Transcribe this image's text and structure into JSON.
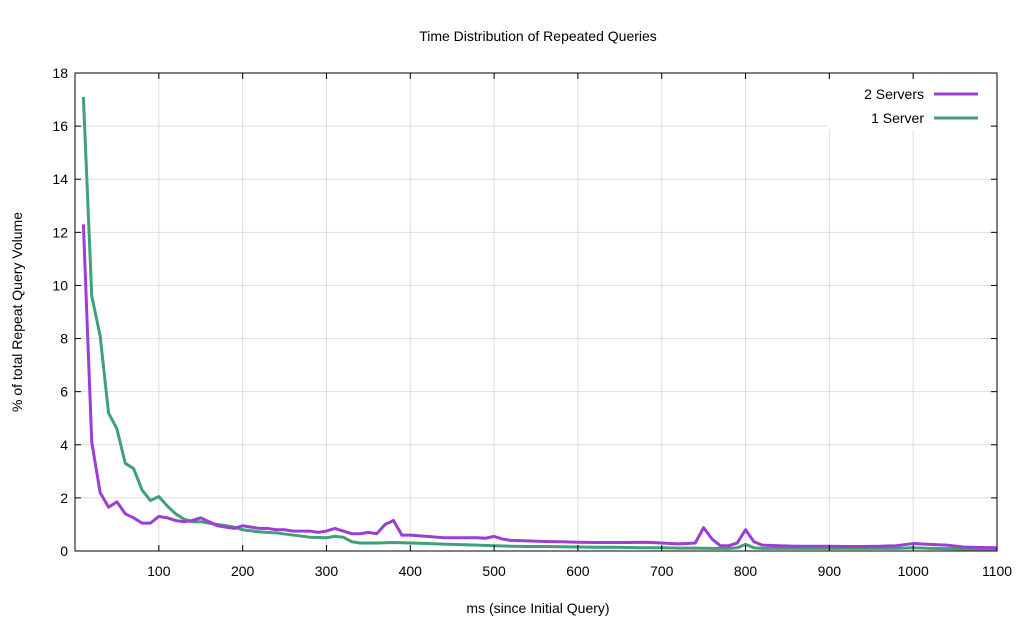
{
  "chart_data": {
    "type": "line",
    "title": "Time Distribution of Repeated Queries",
    "xlabel": "ms (since Initial Query)",
    "ylabel": "% of total Repeat Query Volume",
    "xlim": [
      0,
      1100
    ],
    "ylim": [
      0,
      18
    ],
    "x_ticks": [
      100,
      200,
      300,
      400,
      500,
      600,
      700,
      800,
      900,
      1000,
      1100
    ],
    "y_ticks": [
      0,
      2,
      4,
      6,
      8,
      10,
      12,
      14,
      16,
      18
    ],
    "grid": true,
    "legend_position": "top-right",
    "series": [
      {
        "name": "2  Servers",
        "color": "#9b3fd4",
        "points": [
          [
            10,
            12.3
          ],
          [
            20,
            4.1
          ],
          [
            30,
            2.2
          ],
          [
            40,
            1.65
          ],
          [
            50,
            1.85
          ],
          [
            60,
            1.4
          ],
          [
            70,
            1.25
          ],
          [
            80,
            1.05
          ],
          [
            90,
            1.05
          ],
          [
            100,
            1.3
          ],
          [
            110,
            1.25
          ],
          [
            120,
            1.15
          ],
          [
            130,
            1.1
          ],
          [
            140,
            1.15
          ],
          [
            150,
            1.25
          ],
          [
            160,
            1.1
          ],
          [
            170,
            0.95
          ],
          [
            180,
            0.9
          ],
          [
            190,
            0.85
          ],
          [
            200,
            0.95
          ],
          [
            210,
            0.9
          ],
          [
            220,
            0.85
          ],
          [
            230,
            0.85
          ],
          [
            240,
            0.8
          ],
          [
            250,
            0.8
          ],
          [
            260,
            0.75
          ],
          [
            270,
            0.75
          ],
          [
            280,
            0.75
          ],
          [
            290,
            0.7
          ],
          [
            300,
            0.75
          ],
          [
            310,
            0.85
          ],
          [
            320,
            0.75
          ],
          [
            330,
            0.65
          ],
          [
            340,
            0.65
          ],
          [
            350,
            0.7
          ],
          [
            360,
            0.65
          ],
          [
            370,
            1.0
          ],
          [
            380,
            1.15
          ],
          [
            390,
            0.6
          ],
          [
            400,
            0.6
          ],
          [
            420,
            0.55
          ],
          [
            440,
            0.5
          ],
          [
            460,
            0.5
          ],
          [
            480,
            0.5
          ],
          [
            490,
            0.48
          ],
          [
            500,
            0.55
          ],
          [
            510,
            0.45
          ],
          [
            520,
            0.4
          ],
          [
            540,
            0.38
          ],
          [
            560,
            0.36
          ],
          [
            580,
            0.35
          ],
          [
            600,
            0.33
          ],
          [
            620,
            0.32
          ],
          [
            640,
            0.32
          ],
          [
            660,
            0.32
          ],
          [
            680,
            0.33
          ],
          [
            700,
            0.3
          ],
          [
            710,
            0.28
          ],
          [
            720,
            0.27
          ],
          [
            730,
            0.28
          ],
          [
            740,
            0.3
          ],
          [
            750,
            0.88
          ],
          [
            760,
            0.45
          ],
          [
            770,
            0.2
          ],
          [
            780,
            0.2
          ],
          [
            790,
            0.3
          ],
          [
            800,
            0.8
          ],
          [
            810,
            0.35
          ],
          [
            820,
            0.22
          ],
          [
            840,
            0.2
          ],
          [
            860,
            0.18
          ],
          [
            880,
            0.18
          ],
          [
            900,
            0.18
          ],
          [
            920,
            0.17
          ],
          [
            940,
            0.17
          ],
          [
            960,
            0.18
          ],
          [
            980,
            0.2
          ],
          [
            1000,
            0.28
          ],
          [
            1020,
            0.25
          ],
          [
            1040,
            0.22
          ],
          [
            1060,
            0.15
          ],
          [
            1080,
            0.13
          ],
          [
            1100,
            0.12
          ]
        ]
      },
      {
        "name": "1 Server",
        "color": "#3fa07a",
        "points": [
          [
            10,
            17.1
          ],
          [
            20,
            9.6
          ],
          [
            30,
            8.1
          ],
          [
            40,
            5.2
          ],
          [
            50,
            4.6
          ],
          [
            60,
            3.3
          ],
          [
            70,
            3.1
          ],
          [
            80,
            2.3
          ],
          [
            90,
            1.9
          ],
          [
            100,
            2.05
          ],
          [
            110,
            1.7
          ],
          [
            120,
            1.4
          ],
          [
            130,
            1.2
          ],
          [
            140,
            1.1
          ],
          [
            150,
            1.1
          ],
          [
            160,
            1.05
          ],
          [
            170,
            1.0
          ],
          [
            180,
            0.95
          ],
          [
            190,
            0.9
          ],
          [
            200,
            0.8
          ],
          [
            220,
            0.72
          ],
          [
            240,
            0.68
          ],
          [
            260,
            0.6
          ],
          [
            280,
            0.52
          ],
          [
            300,
            0.5
          ],
          [
            310,
            0.55
          ],
          [
            320,
            0.52
          ],
          [
            330,
            0.35
          ],
          [
            340,
            0.3
          ],
          [
            360,
            0.3
          ],
          [
            380,
            0.32
          ],
          [
            400,
            0.3
          ],
          [
            420,
            0.28
          ],
          [
            440,
            0.26
          ],
          [
            460,
            0.24
          ],
          [
            480,
            0.22
          ],
          [
            500,
            0.2
          ],
          [
            520,
            0.18
          ],
          [
            540,
            0.17
          ],
          [
            560,
            0.17
          ],
          [
            580,
            0.16
          ],
          [
            600,
            0.15
          ],
          [
            620,
            0.14
          ],
          [
            640,
            0.14
          ],
          [
            660,
            0.13
          ],
          [
            680,
            0.12
          ],
          [
            700,
            0.12
          ],
          [
            720,
            0.11
          ],
          [
            740,
            0.11
          ],
          [
            760,
            0.1
          ],
          [
            780,
            0.1
          ],
          [
            790,
            0.12
          ],
          [
            800,
            0.25
          ],
          [
            810,
            0.12
          ],
          [
            820,
            0.1
          ],
          [
            840,
            0.1
          ],
          [
            860,
            0.1
          ],
          [
            880,
            0.1
          ],
          [
            900,
            0.1
          ],
          [
            920,
            0.1
          ],
          [
            940,
            0.1
          ],
          [
            960,
            0.1
          ],
          [
            980,
            0.1
          ],
          [
            1000,
            0.12
          ],
          [
            1020,
            0.1
          ],
          [
            1040,
            0.09
          ],
          [
            1060,
            0.08
          ],
          [
            1080,
            0.08
          ],
          [
            1100,
            0.08
          ]
        ]
      }
    ]
  }
}
